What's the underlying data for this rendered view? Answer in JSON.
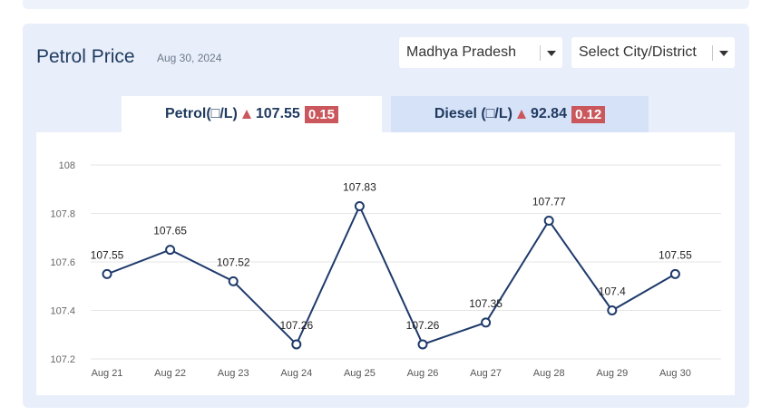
{
  "header": {
    "title": "Petrol Price",
    "date": "Aug 30, 2024"
  },
  "filters": {
    "state_selected": "Madhya Pradesh",
    "city_placeholder": "Select City/District"
  },
  "tabs": {
    "petrol": {
      "label": "Petrol(□/L)",
      "price": "107.55",
      "change": "0.15",
      "direction": "up"
    },
    "diesel": {
      "label": "Diesel (□/L)",
      "price": "92.84",
      "change": "0.12",
      "direction": "up"
    }
  },
  "colors": {
    "line": "#1f3a6b",
    "badge": "#c9575c",
    "title": "#1f3a5f"
  },
  "chart_data": {
    "type": "line",
    "categories": [
      "Aug 21",
      "Aug 22",
      "Aug 23",
      "Aug 24",
      "Aug 25",
      "Aug 26",
      "Aug 27",
      "Aug 28",
      "Aug 29",
      "Aug 30"
    ],
    "values": [
      107.55,
      107.65,
      107.52,
      107.26,
      107.83,
      107.26,
      107.35,
      107.77,
      107.4,
      107.55
    ],
    "data_labels": [
      "107.55",
      "107.65",
      "107.52",
      "107.26",
      "107.83",
      "107.26",
      "107.35",
      "107.77",
      "107.4",
      "107.55"
    ],
    "yticks": [
      "107.2",
      "107.4",
      "107.6",
      "107.8",
      "108"
    ],
    "ylim": [
      107.2,
      108
    ],
    "grid": true
  }
}
